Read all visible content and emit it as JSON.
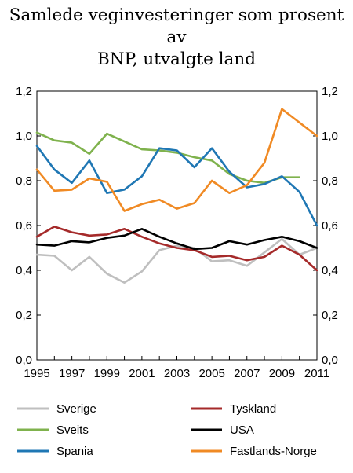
{
  "chart_data": {
    "type": "line",
    "title": "Samlede veginvesteringer som prosent av BNP, utvalgte land",
    "xlabel": "",
    "ylabel": "",
    "x": [
      1995,
      1996,
      1997,
      1998,
      1999,
      2000,
      2001,
      2002,
      2003,
      2004,
      2005,
      2006,
      2007,
      2008,
      2009,
      2010,
      2011
    ],
    "xlim": [
      1995,
      2011
    ],
    "xticks": [
      "1995",
      "1997",
      "1999",
      "2001",
      "2003",
      "2005",
      "2007",
      "2009",
      "2011"
    ],
    "ylim": [
      0,
      1.2
    ],
    "yticks": [
      "0,0",
      "0,2",
      "0,4",
      "0,6",
      "0,8",
      "1,0",
      "1,2"
    ],
    "grid": false,
    "legend_position": "bottom",
    "series": [
      {
        "name": "Sverige",
        "color": "#bfbfbf",
        "values": [
          0.47,
          0.465,
          0.4,
          0.46,
          0.385,
          0.345,
          0.395,
          0.49,
          0.51,
          0.5,
          0.44,
          0.445,
          0.42,
          0.48,
          0.54,
          0.47,
          0.5
        ]
      },
      {
        "name": "Tyskland",
        "color": "#a52a2a",
        "values": [
          0.55,
          0.595,
          0.57,
          0.555,
          0.56,
          0.585,
          0.55,
          0.52,
          0.5,
          0.49,
          0.46,
          0.465,
          0.445,
          0.46,
          0.51,
          0.47,
          0.4
        ]
      },
      {
        "name": "Sveits",
        "color": "#7fb24d",
        "values": [
          1.015,
          0.98,
          0.97,
          0.92,
          1.01,
          0.975,
          0.94,
          0.935,
          0.925,
          0.905,
          0.89,
          0.83,
          0.8,
          0.79,
          0.815,
          0.815,
          null
        ]
      },
      {
        "name": "USA",
        "color": "#000000",
        "values": [
          0.515,
          0.51,
          0.53,
          0.525,
          0.545,
          0.555,
          0.585,
          0.55,
          0.52,
          0.495,
          0.5,
          0.53,
          0.515,
          0.535,
          0.55,
          0.53,
          0.5
        ]
      },
      {
        "name": "Spania",
        "color": "#1f77b4",
        "values": [
          0.955,
          0.85,
          0.79,
          0.89,
          0.745,
          0.76,
          0.82,
          0.945,
          0.935,
          0.86,
          0.945,
          0.84,
          0.77,
          0.785,
          0.82,
          0.75,
          0.6
        ]
      },
      {
        "name": "Fastlands-Norge",
        "color": "#f08a24",
        "values": [
          0.85,
          0.755,
          0.76,
          0.81,
          0.795,
          0.665,
          0.695,
          0.715,
          0.675,
          0.7,
          0.8,
          0.745,
          0.78,
          0.88,
          1.12,
          1.06,
          1.0
        ]
      }
    ]
  }
}
